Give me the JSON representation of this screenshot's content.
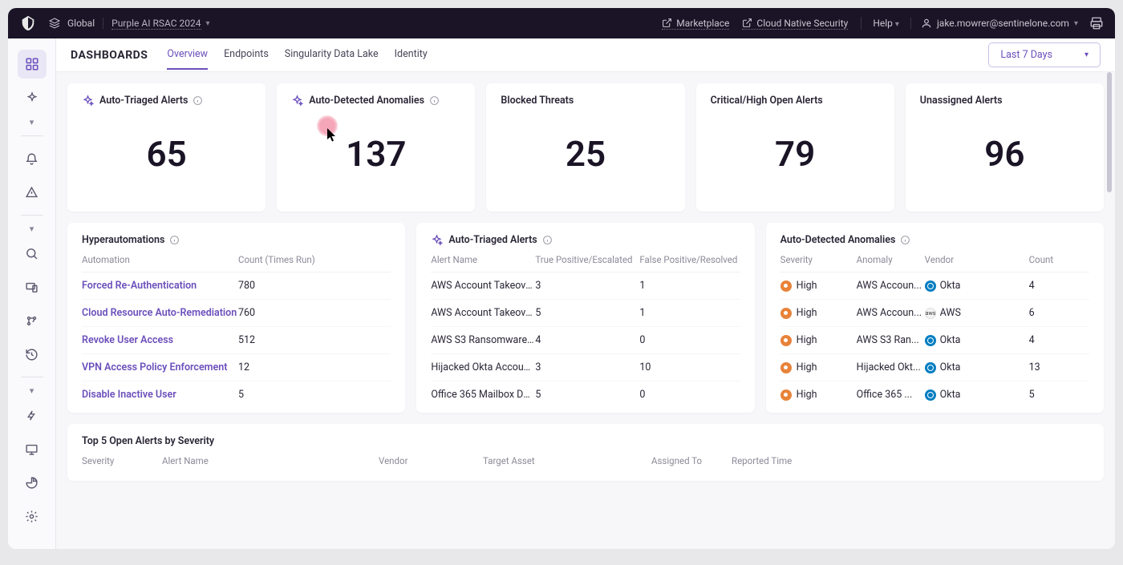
{
  "topbar": {
    "global": "Global",
    "project": "Purple AI RSAC 2024",
    "marketplace": "Marketplace",
    "cloudNative": "Cloud Native Security",
    "help": "Help",
    "user": "jake.mowrer@sentinelone.com"
  },
  "tabs": {
    "title": "DASHBOARDS",
    "items": [
      "Overview",
      "Endpoints",
      "Singularity Data Lake",
      "Identity"
    ],
    "activeIndex": 0,
    "dateRange": "Last 7 Days"
  },
  "kpis": [
    {
      "title": "Auto-Triaged Alerts",
      "value": "65",
      "sparkle": true,
      "info": true
    },
    {
      "title": "Auto-Detected Anomalies",
      "value": "137",
      "sparkle": true,
      "info": true
    },
    {
      "title": "Blocked Threats",
      "value": "25",
      "sparkle": false,
      "info": false
    },
    {
      "title": "Critical/High Open Alerts",
      "value": "79",
      "sparkle": false,
      "info": false
    },
    {
      "title": "Unassigned Alerts",
      "value": "96",
      "sparkle": false,
      "info": false
    }
  ],
  "hyper": {
    "title": "Hyperautomations",
    "cols": [
      "Automation",
      "Count (Times Run)"
    ],
    "rows": [
      {
        "name": "Forced Re-Authentication",
        "count": "780"
      },
      {
        "name": "Cloud Resource Auto-Remediation",
        "count": "760"
      },
      {
        "name": "Revoke User Access",
        "count": "512"
      },
      {
        "name": "VPN Access Policy Enforcement",
        "count": "12"
      },
      {
        "name": "Disable Inactive User",
        "count": "5"
      }
    ]
  },
  "triaged": {
    "title": "Auto-Triaged Alerts",
    "cols": [
      "Alert Name",
      "True Positive/Escalated",
      "False Positive/Resolved"
    ],
    "rows": [
      {
        "name": "AWS Account Takeove...",
        "tp": "3",
        "fp": "1"
      },
      {
        "name": "AWS Account Takeove...",
        "tp": "5",
        "fp": "1"
      },
      {
        "name": "AWS S3 Ransomware ...",
        "tp": "4",
        "fp": "0"
      },
      {
        "name": "Hijacked Okta Account...",
        "tp": "3",
        "fp": "10"
      },
      {
        "name": "Office 365 Mailbox Da...",
        "tp": "5",
        "fp": "0"
      }
    ]
  },
  "anomalies": {
    "title": "Auto-Detected Anomalies",
    "cols": [
      "Severity",
      "Anomaly",
      "Vendor",
      "Count"
    ],
    "rows": [
      {
        "sev": "High",
        "anomaly": "AWS Accoun...",
        "vendor": "Okta",
        "vtype": "okta",
        "count": "4"
      },
      {
        "sev": "High",
        "anomaly": "AWS Accoun...",
        "vendor": "AWS",
        "vtype": "aws",
        "count": "6"
      },
      {
        "sev": "High",
        "anomaly": "AWS S3 Ran...",
        "vendor": "Okta",
        "vtype": "okta",
        "count": "4"
      },
      {
        "sev": "High",
        "anomaly": "Hijacked Okt...",
        "vendor": "Okta",
        "vtype": "okta",
        "count": "13"
      },
      {
        "sev": "High",
        "anomaly": "Office 365 ...",
        "vendor": "Okta",
        "vtype": "okta",
        "count": "5"
      }
    ]
  },
  "topAlerts": {
    "title": "Top 5 Open Alerts by Severity",
    "cols": [
      "Severity",
      "Alert Name",
      "Vendor",
      "Target Asset",
      "Assigned To",
      "Reported Time"
    ]
  },
  "colors": {
    "accent": "#6b4fbb",
    "sevHigh": "#e8833a",
    "okta": "#007dc1"
  }
}
